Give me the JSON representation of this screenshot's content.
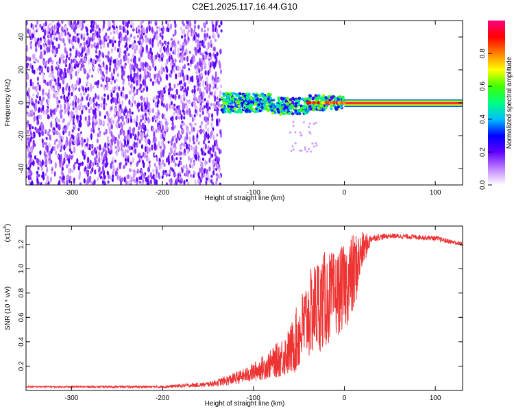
{
  "title": "C2E1.2025.117.16.44.G10",
  "chart_data": [
    {
      "type": "heatmap",
      "title": "C2E1.2025.117.16.44.G10",
      "xlabel": "Height of straight line (km)",
      "ylabel": "Frequency (Hz)",
      "xlim": [
        -350,
        130
      ],
      "ylim": [
        -50,
        50
      ],
      "xticks": [
        -300,
        -200,
        -100,
        0,
        100
      ],
      "yticks": [
        -40,
        -20,
        0,
        20,
        40
      ],
      "colorbar": {
        "label": "Normalized spectral amplitude",
        "range": [
          0,
          1
        ],
        "ticks": [
          "0.0",
          "0.2",
          "0.4",
          "0.6",
          "0.8"
        ],
        "colors": [
          "#ffffff",
          "#c080ff",
          "#6000ff",
          "#0000ff",
          "#00c0ff",
          "#00ff80",
          "#40ff00",
          "#ffff00",
          "#ff8000",
          "#ff0000",
          "#ff0080"
        ]
      },
      "regions": [
        {
          "x_range": [
            -350,
            -135
          ],
          "freq_range": [
            -50,
            50
          ],
          "amplitude": "0.0-0.2"
        },
        {
          "x_range": [
            -135,
            0
          ],
          "freq_center": 0,
          "freq_spread": 5,
          "amplitude": "0.2-0.7"
        },
        {
          "x_range": [
            0,
            130
          ],
          "freq_center": 0,
          "freq_spread": 1,
          "amplitude": "0.9-1.0"
        }
      ]
    },
    {
      "type": "line",
      "xlabel": "Height of straight line (km)",
      "ylabel": "SNR (10 * v/v)",
      "scale_label": "(x10",
      "scale_exp": "4",
      "xlim": [
        -350,
        130
      ],
      "ylim": [
        0,
        1.35
      ],
      "xticks": [
        -300,
        -200,
        -100,
        0,
        100
      ],
      "yticks": [
        "0.2",
        "0.4",
        "0.6",
        "0.8",
        "1.0",
        "1.2"
      ],
      "series": [
        {
          "color": "#ee3333",
          "envelope": {
            "x": [
              -350,
              -200,
              -150,
              -130,
              -110,
              -100,
              -80,
              -60,
              -50,
              -40,
              -30,
              -20,
              -10,
              0,
              10,
              20,
              30,
              50,
              80,
              100,
              130
            ],
            "mean": [
              0.03,
              0.03,
              0.05,
              0.08,
              0.12,
              0.15,
              0.22,
              0.32,
              0.45,
              0.6,
              0.7,
              0.75,
              0.78,
              0.85,
              0.95,
              1.15,
              1.25,
              1.27,
              1.26,
              1.25,
              1.2
            ],
            "noise": [
              0.005,
              0.01,
              0.02,
              0.04,
              0.06,
              0.08,
              0.12,
              0.2,
              0.3,
              0.35,
              0.4,
              0.4,
              0.35,
              0.35,
              0.35,
              0.15,
              0.03,
              0.02,
              0.02,
              0.02,
              0.02
            ]
          }
        }
      ]
    }
  ]
}
